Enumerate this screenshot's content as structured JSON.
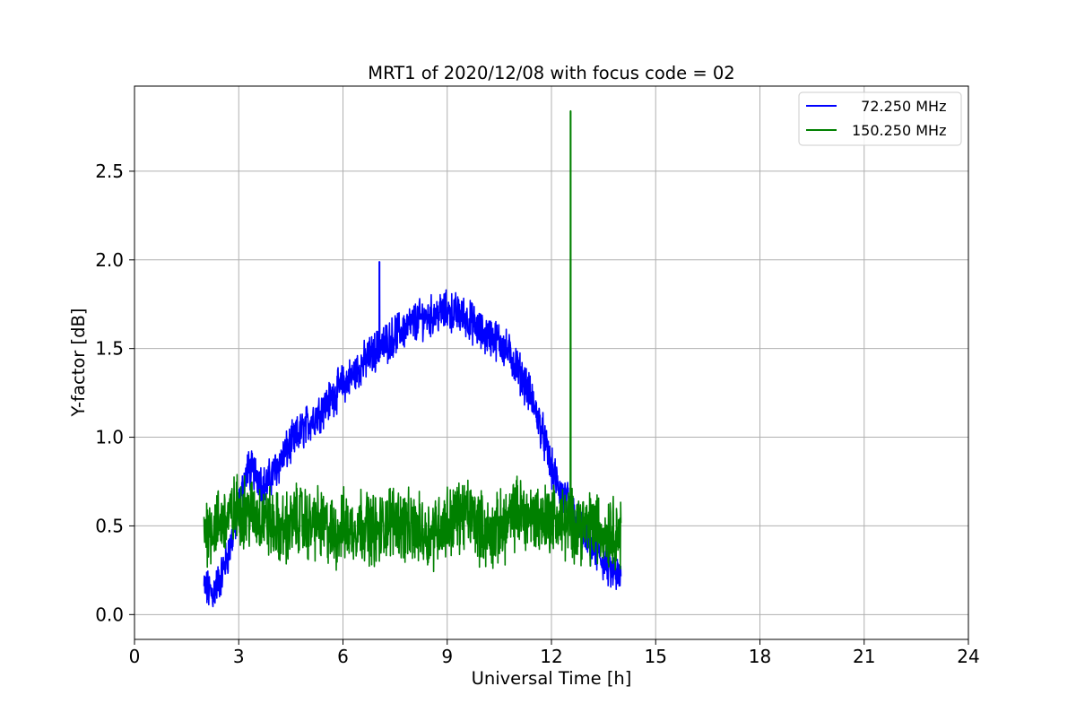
{
  "chart_data": {
    "type": "line",
    "title": "MRT1 of 2020/12/08 with focus code = 02",
    "xlabel": "Universal Time [h]",
    "ylabel": "Y-factor [dB]",
    "xlim": [
      0,
      24
    ],
    "ylim": [
      -0.14,
      2.98
    ],
    "xticks": [
      0,
      3,
      6,
      9,
      12,
      15,
      18,
      21,
      24
    ],
    "yticks": [
      0.0,
      0.5,
      1.0,
      1.5,
      2.0,
      2.5
    ],
    "xtick_labels": [
      "0",
      "3",
      "6",
      "9",
      "12",
      "15",
      "18",
      "21",
      "24"
    ],
    "ytick_labels": [
      "0.0",
      "0.5",
      "1.0",
      "1.5",
      "2.0",
      "2.5"
    ],
    "grid": true,
    "legend_position": "top-right",
    "series": [
      {
        "name": "  72.250 MHz",
        "color": "#0000ff",
        "x": [
          2.0,
          2.25,
          2.5,
          2.75,
          3.0,
          3.25,
          3.5,
          3.75,
          4.0,
          4.25,
          4.5,
          4.75,
          5.0,
          5.25,
          5.5,
          5.75,
          6.0,
          6.25,
          6.5,
          6.75,
          7.0,
          7.25,
          7.5,
          7.75,
          8.0,
          8.25,
          8.5,
          8.75,
          9.0,
          9.25,
          9.5,
          9.75,
          10.0,
          10.25,
          10.5,
          10.75,
          11.0,
          11.25,
          11.5,
          11.75,
          12.0,
          12.25,
          12.5,
          12.75,
          13.0,
          13.25,
          13.5,
          13.75,
          14.0
        ],
        "y": [
          0.15,
          0.12,
          0.22,
          0.38,
          0.6,
          0.82,
          0.8,
          0.72,
          0.8,
          0.88,
          0.96,
          1.02,
          1.08,
          1.13,
          1.18,
          1.24,
          1.3,
          1.34,
          1.4,
          1.45,
          1.5,
          1.53,
          1.58,
          1.61,
          1.64,
          1.67,
          1.68,
          1.7,
          1.71,
          1.7,
          1.68,
          1.64,
          1.58,
          1.57,
          1.54,
          1.48,
          1.4,
          1.3,
          1.18,
          1.02,
          0.82,
          0.7,
          0.62,
          0.52,
          0.42,
          0.35,
          0.3,
          0.24,
          0.2
        ],
        "peak": {
          "x": 7.05,
          "y": 1.99
        }
      },
      {
        "name": "150.250 MHz",
        "color": "#008000",
        "x": [
          2.0,
          2.25,
          2.5,
          2.75,
          3.0,
          3.25,
          3.5,
          3.75,
          4.0,
          4.25,
          4.5,
          4.75,
          5.0,
          5.25,
          5.5,
          5.75,
          6.0,
          6.25,
          6.5,
          6.75,
          7.0,
          7.25,
          7.5,
          7.75,
          8.0,
          8.25,
          8.5,
          8.75,
          9.0,
          9.25,
          9.5,
          9.75,
          10.0,
          10.25,
          10.5,
          10.75,
          11.0,
          11.25,
          11.5,
          11.75,
          12.0,
          12.25,
          12.5,
          12.75,
          13.0,
          13.25,
          13.5,
          13.75,
          14.0
        ],
        "y": [
          0.48,
          0.5,
          0.52,
          0.55,
          0.6,
          0.58,
          0.56,
          0.54,
          0.5,
          0.47,
          0.5,
          0.55,
          0.5,
          0.52,
          0.48,
          0.45,
          0.5,
          0.48,
          0.52,
          0.5,
          0.46,
          0.52,
          0.55,
          0.5,
          0.48,
          0.47,
          0.45,
          0.5,
          0.52,
          0.55,
          0.57,
          0.55,
          0.48,
          0.45,
          0.48,
          0.52,
          0.58,
          0.56,
          0.55,
          0.54,
          0.56,
          0.52,
          0.5,
          0.52,
          0.48,
          0.5,
          0.46,
          0.48,
          0.45
        ],
        "peak": {
          "x": 12.55,
          "y": 2.84
        }
      }
    ]
  }
}
